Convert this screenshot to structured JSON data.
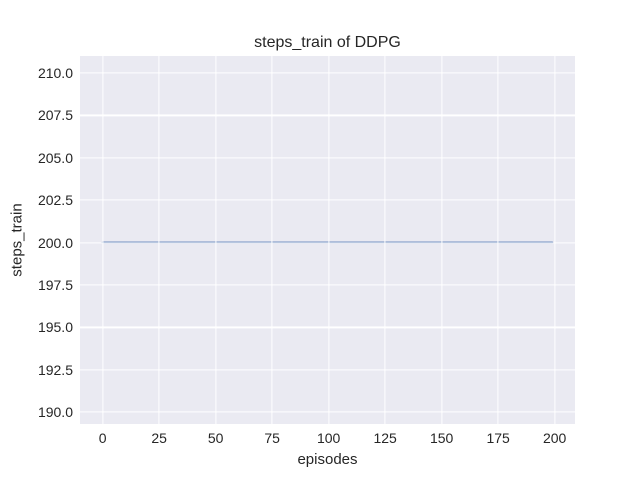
{
  "chart_data": {
    "type": "line",
    "title": "steps_train of DDPG",
    "xlabel": "episodes",
    "ylabel": "steps_train",
    "xlim": [
      -10.0,
      209.0
    ],
    "ylim": [
      189.3,
      211.0
    ],
    "xticks": [
      0,
      25,
      50,
      75,
      100,
      125,
      150,
      175,
      200
    ],
    "xtick_labels": [
      "0",
      "25",
      "50",
      "75",
      "100",
      "125",
      "150",
      "175",
      "200"
    ],
    "yticks": [
      190.0,
      192.5,
      195.0,
      197.5,
      200.0,
      202.5,
      205.0,
      207.5,
      210.0
    ],
    "ytick_labels": [
      "190.0",
      "192.5",
      "195.0",
      "197.5",
      "200.0",
      "202.5",
      "205.0",
      "207.5",
      "210.0"
    ],
    "grid": true,
    "legend": "none",
    "series": [
      {
        "name": "steps_train",
        "color": "#4c72b0",
        "line_width": 1.8,
        "x": [
          0,
          199
        ],
        "y": [
          200,
          200
        ]
      }
    ],
    "style": {
      "figure_background": "#ffffff",
      "axes_background": "#eaeaf2",
      "grid_color": "#ffffff",
      "text_color": "#262626"
    }
  }
}
